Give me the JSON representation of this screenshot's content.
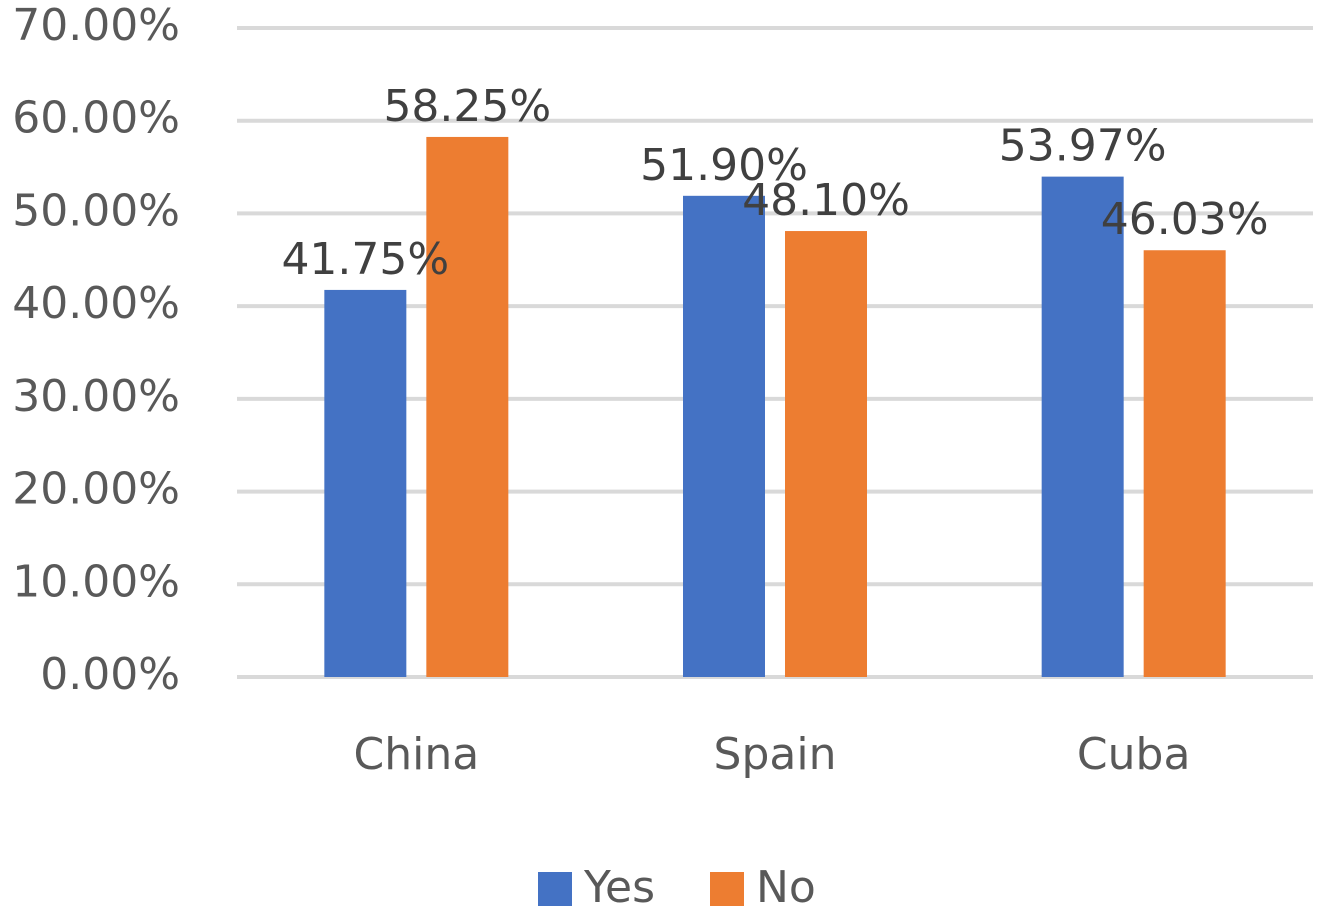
{
  "chart_data": {
    "type": "bar",
    "categories": [
      "China",
      "Spain",
      "Cuba"
    ],
    "series": [
      {
        "name": "Yes",
        "color": "#4472c4",
        "values": [
          41.75,
          51.9,
          53.97
        ],
        "value_labels": [
          "41.75%",
          "51.90%",
          "53.97%"
        ]
      },
      {
        "name": "No",
        "color": "#ed7d31",
        "values": [
          58.25,
          48.1,
          46.03
        ],
        "value_labels": [
          "58.25%",
          "48.10%",
          "46.03%"
        ]
      }
    ],
    "ylim": [
      0,
      70
    ],
    "yticks": [
      {
        "value": 0,
        "label": "0.00%"
      },
      {
        "value": 10,
        "label": "10.00%"
      },
      {
        "value": 20,
        "label": "20.00%"
      },
      {
        "value": 30,
        "label": "30.00%"
      },
      {
        "value": 40,
        "label": "40.00%"
      },
      {
        "value": 50,
        "label": "50.00%"
      },
      {
        "value": 60,
        "label": "60.00%"
      },
      {
        "value": 70,
        "label": "70.00%"
      }
    ],
    "grid": true,
    "legend": "bottom"
  }
}
